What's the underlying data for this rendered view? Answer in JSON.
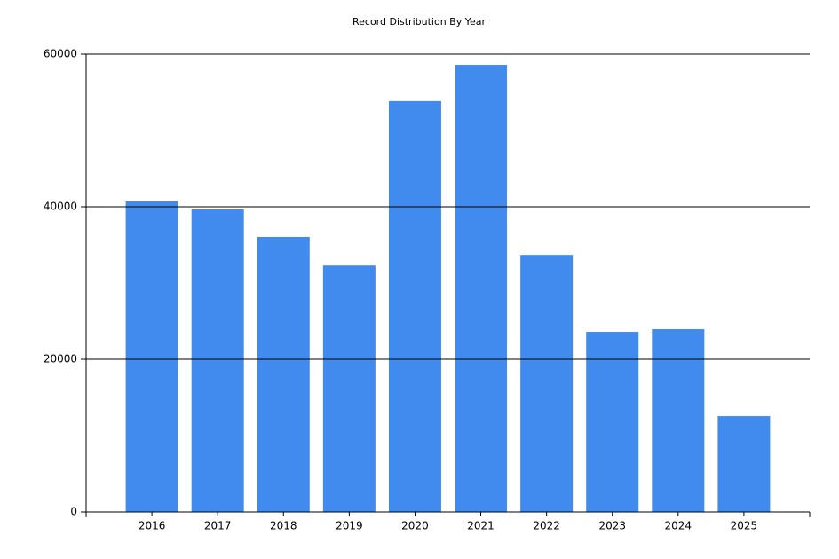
{
  "chart_data": {
    "type": "bar",
    "title": "Record Distribution By Year",
    "categories": [
      "2016",
      "2017",
      "2018",
      "2019",
      "2020",
      "2021",
      "2022",
      "2023",
      "2024",
      "2025"
    ],
    "values": [
      40700,
      39650,
      36050,
      32300,
      53850,
      58600,
      33700,
      23600,
      23950,
      12550
    ],
    "color": "#418bef",
    "ylim": [
      0,
      60000
    ],
    "yticks": [
      0,
      20000,
      40000,
      60000
    ],
    "grid": true
  }
}
